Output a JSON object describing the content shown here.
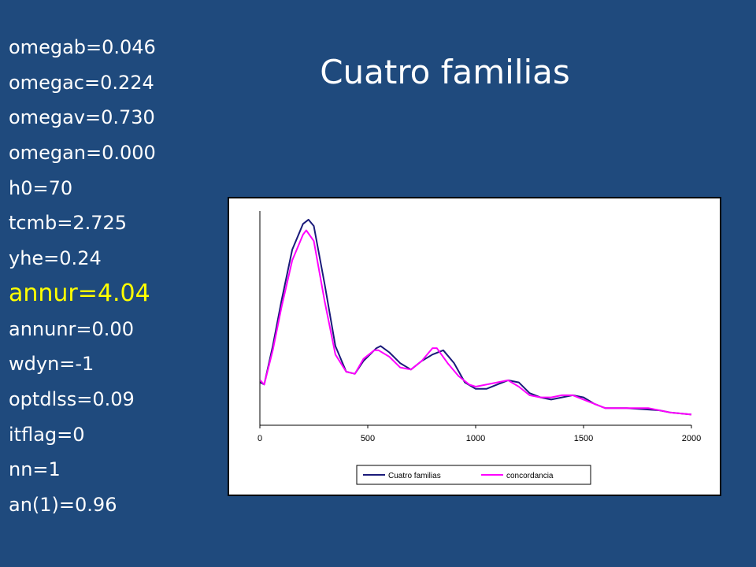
{
  "slide": {
    "title": "Cuatro familias",
    "params": [
      {
        "text": "omegab=0.046",
        "highlight": false
      },
      {
        "text": "omegac=0.224",
        "highlight": false
      },
      {
        "text": "omegav=0.730",
        "highlight": false
      },
      {
        "text": "omegan=0.000",
        "highlight": false
      },
      {
        "text": "h0=70",
        "highlight": false
      },
      {
        "text": "tcmb=2.725",
        "highlight": false
      },
      {
        "text": "yhe=0.24",
        "highlight": false
      },
      {
        "text": "annur=4.04",
        "highlight": true
      },
      {
        "text": "annunr=0.00",
        "highlight": false
      },
      {
        "text": "wdyn=-1",
        "highlight": false
      },
      {
        "text": "optdlss=0.09",
        "highlight": false
      },
      {
        "text": "itflag=0",
        "highlight": false
      },
      {
        "text": "nn=1",
        "highlight": false
      },
      {
        "text": "an(1)=0.96",
        "highlight": false
      }
    ],
    "colors": {
      "background": "#1f4a7d",
      "text": "#ffffff",
      "highlight": "#ffff00"
    }
  },
  "chart_data": {
    "type": "line",
    "title": "",
    "xlabel": "",
    "ylabel": "",
    "xlim": [
      0,
      2000
    ],
    "ylim": [
      0,
      1
    ],
    "x_ticks": [
      0,
      500,
      1000,
      1500,
      2000
    ],
    "y_ticks": [],
    "grid": false,
    "legend_position": "bottom",
    "series": [
      {
        "name": "Cuatro familias",
        "color": "#1a1a7a",
        "points": [
          [
            2,
            0.2
          ],
          [
            20,
            0.19
          ],
          [
            60,
            0.37
          ],
          [
            100,
            0.58
          ],
          [
            150,
            0.82
          ],
          [
            200,
            0.94
          ],
          [
            225,
            0.96
          ],
          [
            250,
            0.93
          ],
          [
            300,
            0.66
          ],
          [
            350,
            0.37
          ],
          [
            400,
            0.25
          ],
          [
            440,
            0.24
          ],
          [
            480,
            0.3
          ],
          [
            540,
            0.36
          ],
          [
            560,
            0.37
          ],
          [
            600,
            0.34
          ],
          [
            650,
            0.29
          ],
          [
            700,
            0.26
          ],
          [
            750,
            0.3
          ],
          [
            800,
            0.33
          ],
          [
            850,
            0.35
          ],
          [
            900,
            0.29
          ],
          [
            950,
            0.2
          ],
          [
            1000,
            0.17
          ],
          [
            1050,
            0.17
          ],
          [
            1100,
            0.19
          ],
          [
            1150,
            0.21
          ],
          [
            1200,
            0.2
          ],
          [
            1250,
            0.15
          ],
          [
            1300,
            0.13
          ],
          [
            1350,
            0.12
          ],
          [
            1400,
            0.13
          ],
          [
            1450,
            0.14
          ],
          [
            1500,
            0.13
          ],
          [
            1550,
            0.1
          ],
          [
            1600,
            0.08
          ],
          [
            1700,
            0.08
          ],
          [
            1850,
            0.07
          ],
          [
            1900,
            0.06
          ],
          [
            2000,
            0.05
          ]
        ]
      },
      {
        "name": "concordancia",
        "color": "#ff00ff",
        "points": [
          [
            2,
            0.21
          ],
          [
            20,
            0.19
          ],
          [
            60,
            0.35
          ],
          [
            100,
            0.55
          ],
          [
            150,
            0.77
          ],
          [
            200,
            0.89
          ],
          [
            215,
            0.91
          ],
          [
            250,
            0.86
          ],
          [
            300,
            0.58
          ],
          [
            350,
            0.33
          ],
          [
            400,
            0.25
          ],
          [
            440,
            0.24
          ],
          [
            480,
            0.31
          ],
          [
            530,
            0.35
          ],
          [
            550,
            0.35
          ],
          [
            600,
            0.32
          ],
          [
            650,
            0.27
          ],
          [
            700,
            0.26
          ],
          [
            750,
            0.3
          ],
          [
            800,
            0.36
          ],
          [
            820,
            0.36
          ],
          [
            870,
            0.29
          ],
          [
            920,
            0.23
          ],
          [
            970,
            0.19
          ],
          [
            1000,
            0.18
          ],
          [
            1100,
            0.2
          ],
          [
            1150,
            0.21
          ],
          [
            1200,
            0.18
          ],
          [
            1250,
            0.14
          ],
          [
            1300,
            0.13
          ],
          [
            1350,
            0.13
          ],
          [
            1400,
            0.14
          ],
          [
            1450,
            0.14
          ],
          [
            1500,
            0.12
          ],
          [
            1550,
            0.1
          ],
          [
            1600,
            0.08
          ],
          [
            1700,
            0.08
          ],
          [
            1800,
            0.08
          ],
          [
            1900,
            0.06
          ],
          [
            2000,
            0.05
          ]
        ]
      }
    ]
  }
}
